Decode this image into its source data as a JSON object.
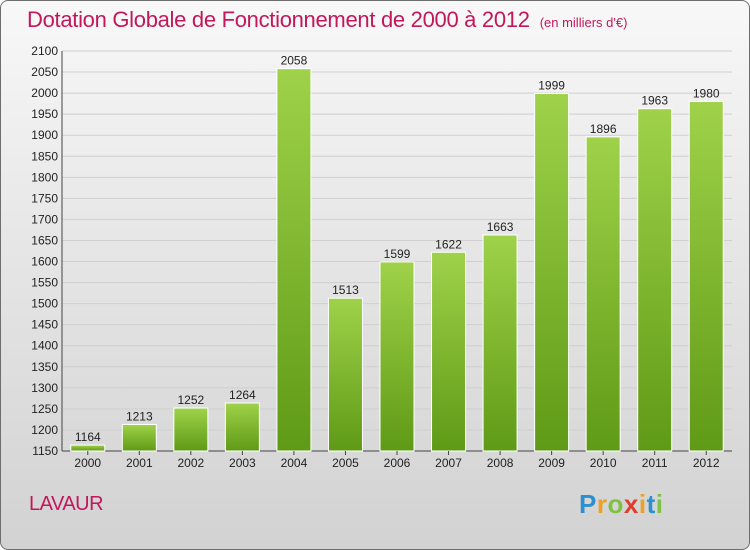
{
  "title": "Dotation Globale de Fonctionnement de 2000 à 2012",
  "unit": "(en milliers d'€)",
  "place": "LAVAUR",
  "logo": [
    "P",
    "r",
    "o",
    "x",
    "i",
    "t",
    "i"
  ],
  "colors": {
    "title": "#c2185b",
    "bar_light": "#9fd24a",
    "bar_dark": "#5f9a16",
    "logo": [
      "#2e8fd0",
      "#f0a020",
      "#7cc243",
      "#e23c2b",
      "#f0a020",
      "#2e8fd0",
      "#7cc243"
    ]
  },
  "chart_data": {
    "type": "bar",
    "categories": [
      "2000",
      "2001",
      "2002",
      "2003",
      "2004",
      "2005",
      "2006",
      "2007",
      "2008",
      "2009",
      "2010",
      "2011",
      "2012"
    ],
    "values": [
      1164,
      1213,
      1252,
      1264,
      2058,
      1513,
      1599,
      1622,
      1663,
      1999,
      1896,
      1963,
      1980
    ],
    "ylim": [
      1150,
      2100
    ],
    "yticks": [
      1150,
      1200,
      1250,
      1300,
      1350,
      1400,
      1450,
      1500,
      1550,
      1600,
      1650,
      1700,
      1750,
      1800,
      1850,
      1900,
      1950,
      2000,
      2050,
      2100
    ],
    "grid": true,
    "data_labels": true
  }
}
